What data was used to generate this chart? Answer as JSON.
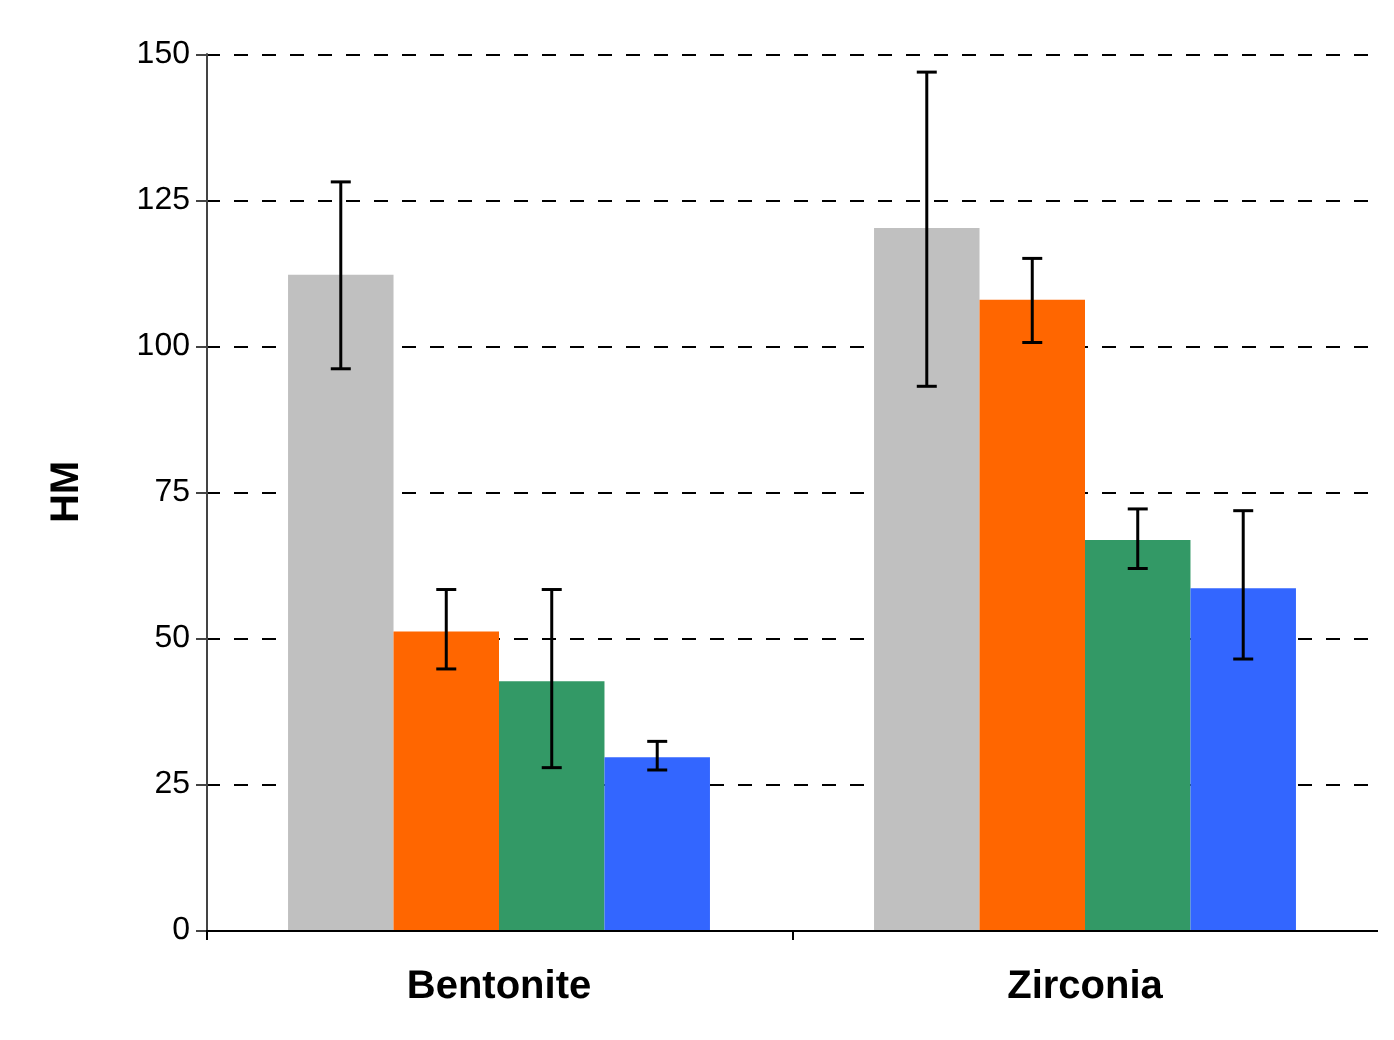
{
  "chart_data": {
    "type": "bar",
    "ylabel": "HM",
    "categories": [
      "Bentonite",
      "Zirconia"
    ],
    "ylim": [
      0,
      150
    ],
    "yticks": [
      0,
      25,
      50,
      75,
      100,
      125,
      150
    ],
    "grid": "y",
    "series": [
      {
        "color": "#c0c0c0",
        "values": [
          112.2,
          120.2
        ],
        "errors": [
          [
            96.1,
            128.1
          ],
          [
            93.1,
            146.9
          ]
        ]
      },
      {
        "color": "#ff6600",
        "values": [
          51.1,
          107.9
        ],
        "errors": [
          [
            44.7,
            58.3
          ],
          [
            100.6,
            115.0
          ]
        ]
      },
      {
        "color": "#339966",
        "values": [
          42.6,
          66.8
        ],
        "errors": [
          [
            27.8,
            58.3
          ],
          [
            61.9,
            72.1
          ]
        ]
      },
      {
        "color": "#3366ff",
        "values": [
          29.6,
          58.5
        ],
        "errors": [
          [
            27.4,
            32.3
          ],
          [
            46.4,
            71.8
          ]
        ]
      }
    ]
  }
}
